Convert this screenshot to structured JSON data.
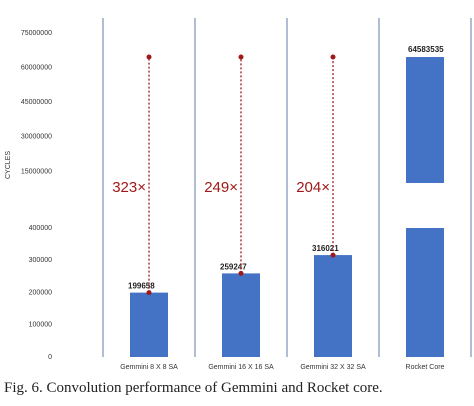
{
  "chart_data": {
    "type": "bar",
    "y_label": "CYCLES",
    "categories": [
      "Gemmini 8 X 8 SA",
      "Gemmini 16 X 16 SA",
      "Gemmini 32 X 32 SA",
      "Rocket Core"
    ],
    "values": [
      199658,
      259247,
      316021,
      64583535
    ],
    "color": "#4472c4",
    "ylim": [
      0,
      400000
    ],
    "yticks": [
      0,
      100000,
      200000,
      300000,
      400000
    ],
    "ylim_upper": [
      10000000,
      75000000
    ],
    "yticks_upper": [
      15000000,
      30000000,
      45000000,
      60000000,
      75000000
    ],
    "axis_break": true,
    "annotations": [
      "323×",
      "249×",
      "204×"
    ],
    "annotation_color": "#a01818"
  },
  "caption": "Fig. 6.   Convolution performance of Gemmini and Rocket core."
}
